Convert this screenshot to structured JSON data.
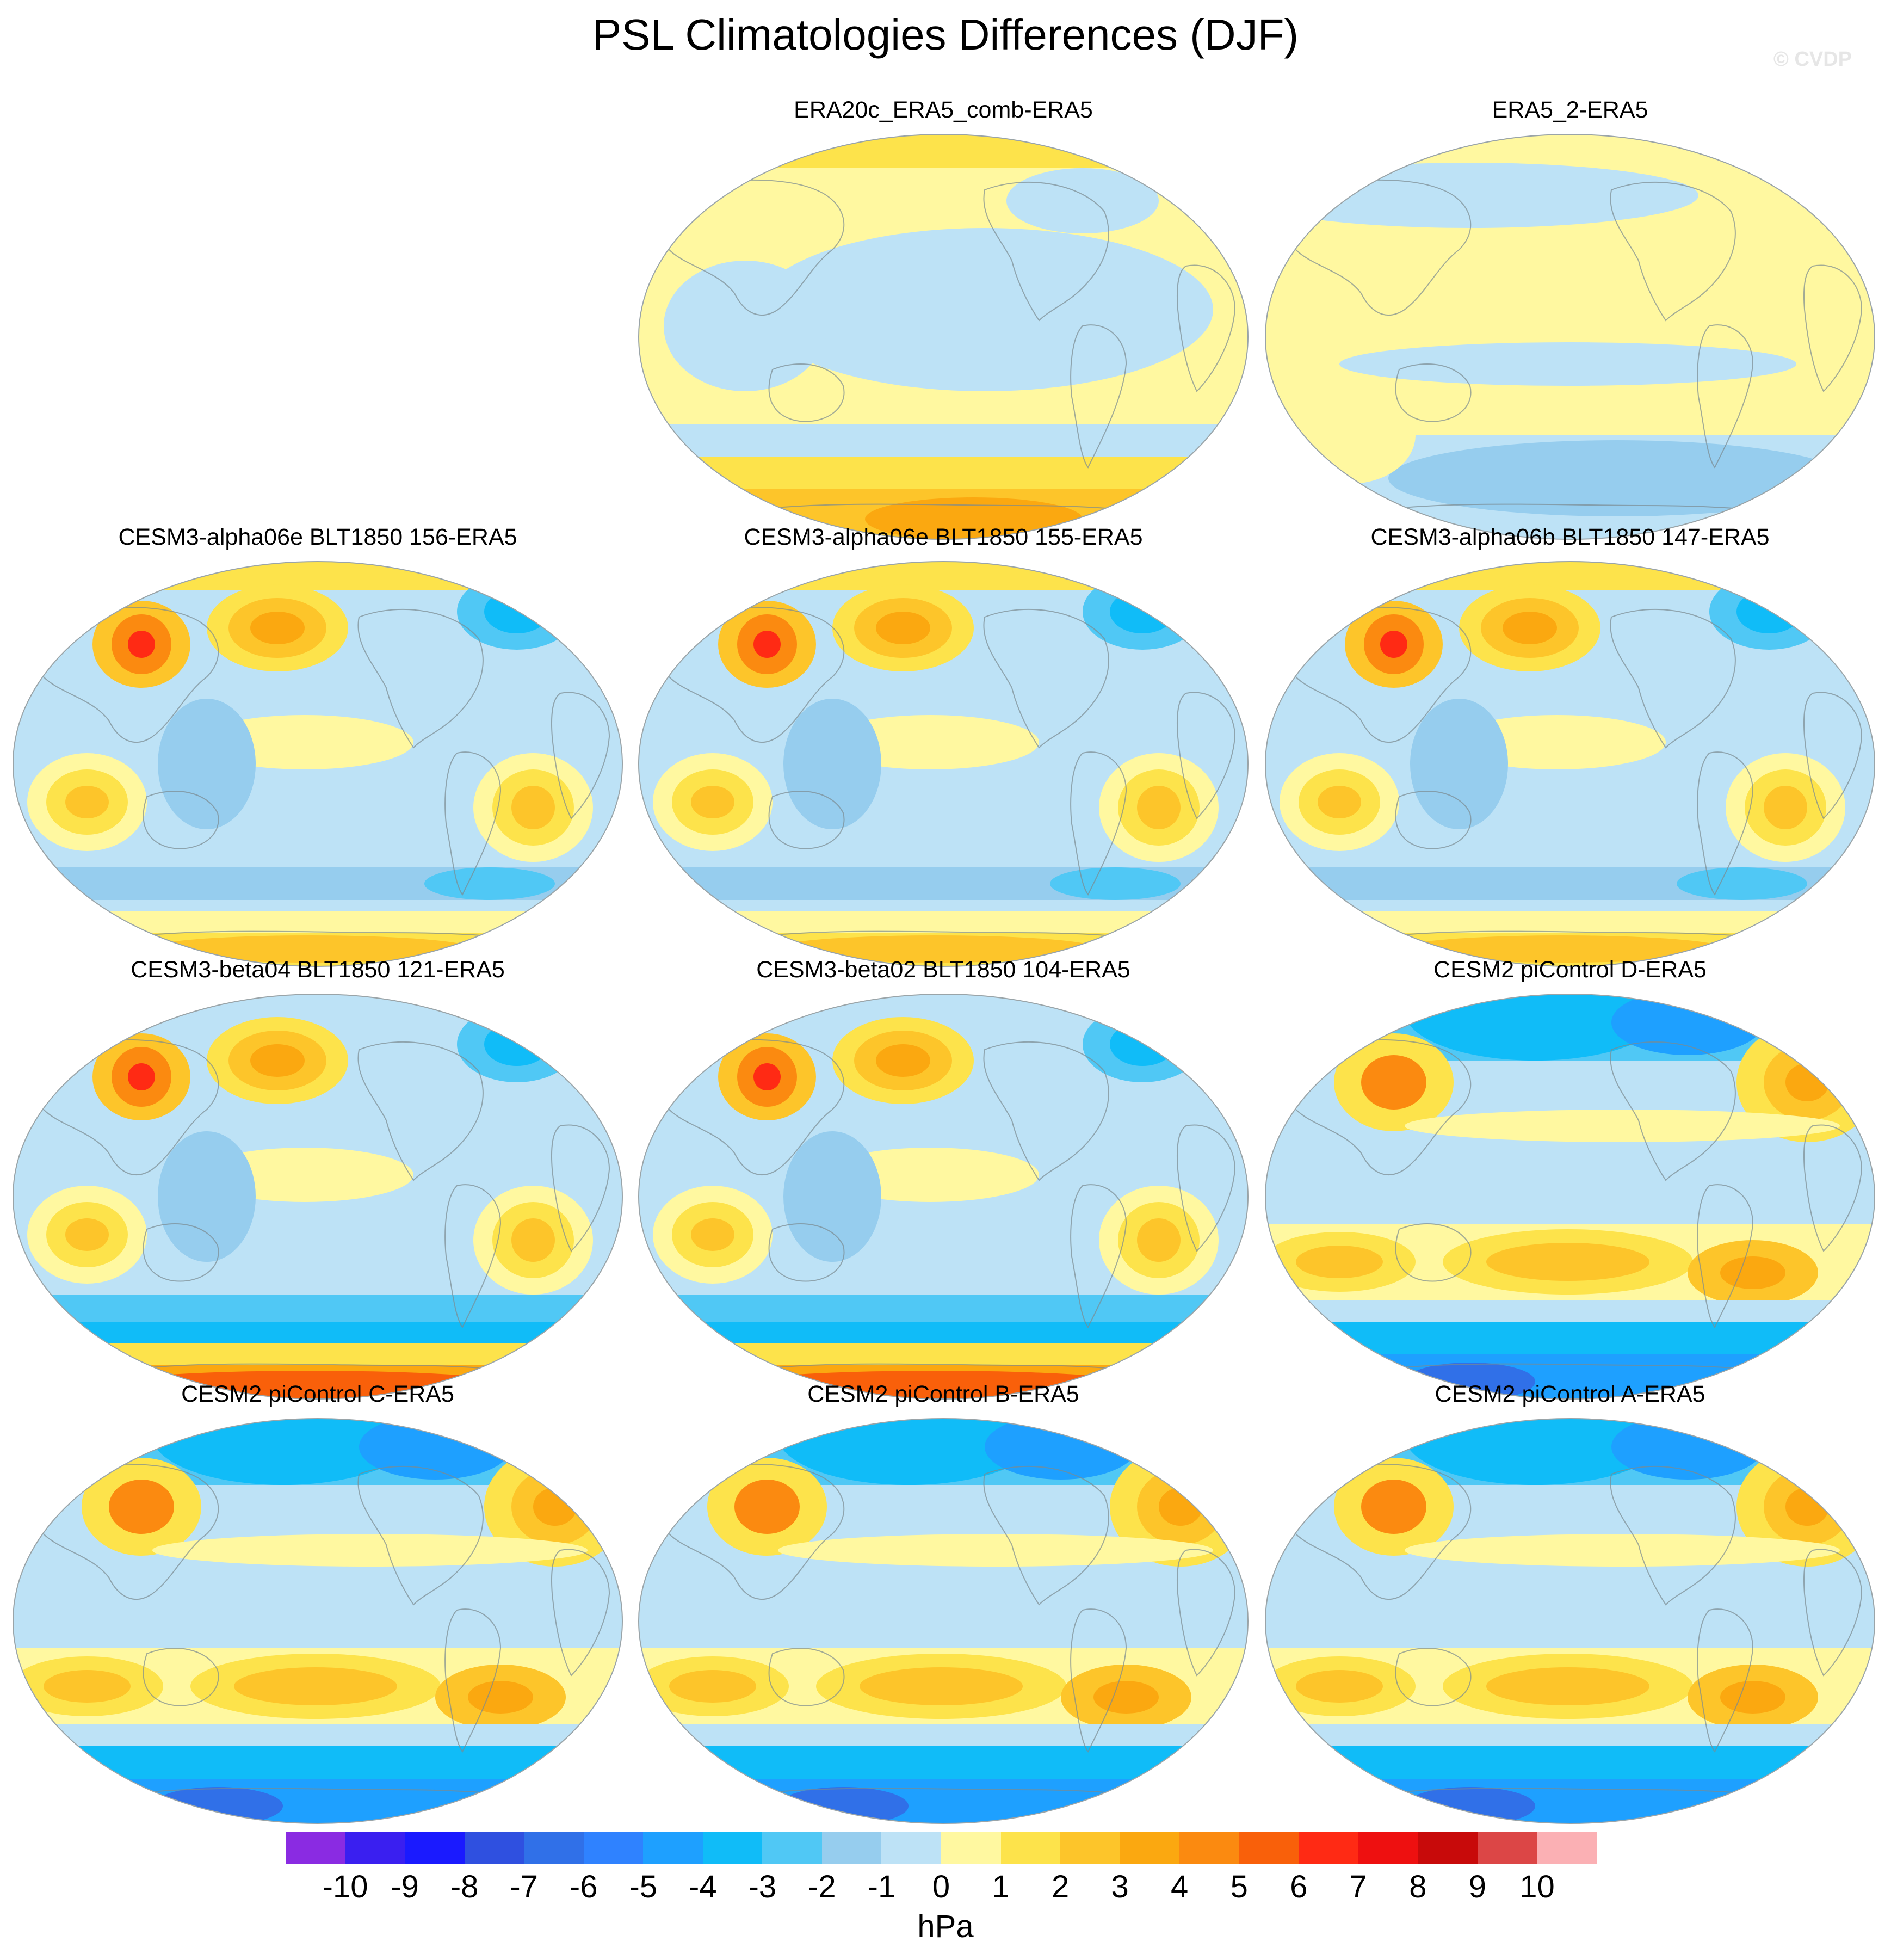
{
  "title": "PSL Climatologies Differences (DJF)",
  "copyright": "© CVDP",
  "panels": [
    {
      "title": "ERA20c_ERA5_comb-ERA5",
      "row": 0,
      "col": 1,
      "style": "obs"
    },
    {
      "title": "ERA5_2-ERA5",
      "row": 0,
      "col": 2,
      "style": "obs2"
    },
    {
      "title": "CESM3-alpha06e BLT1850 156-ERA5",
      "row": 1,
      "col": 0,
      "style": "cesm3"
    },
    {
      "title": "CESM3-alpha06e BLT1850 155-ERA5",
      "row": 1,
      "col": 1,
      "style": "cesm3"
    },
    {
      "title": "CESM3-alpha06b BLT1850 147-ERA5",
      "row": 1,
      "col": 2,
      "style": "cesm3"
    },
    {
      "title": "CESM3-beta04 BLT1850 121-ERA5",
      "row": 2,
      "col": 0,
      "style": "cesm3b"
    },
    {
      "title": "CESM3-beta02 BLT1850 104-ERA5",
      "row": 2,
      "col": 1,
      "style": "cesm3b"
    },
    {
      "title": "CESM2 piControl D-ERA5",
      "row": 2,
      "col": 2,
      "style": "cesm2"
    },
    {
      "title": "CESM2 piControl C-ERA5",
      "row": 3,
      "col": 0,
      "style": "cesm2"
    },
    {
      "title": "CESM2 piControl B-ERA5",
      "row": 3,
      "col": 1,
      "style": "cesm2"
    },
    {
      "title": "CESM2 piControl A-ERA5",
      "row": 3,
      "col": 2,
      "style": "cesm2"
    }
  ],
  "colorbar": {
    "colors": [
      "#8a2be2",
      "#3a1ff0",
      "#1a1aff",
      "#2f50e0",
      "#3070e8",
      "#2f82ff",
      "#1ea0ff",
      "#10bcf8",
      "#50c8f5",
      "#96cdee",
      "#bde2f6",
      "#fff8a0",
      "#fde34b",
      "#fdc52a",
      "#fba810",
      "#fb8a10",
      "#f9600a",
      "#ff2a14",
      "#ee1010",
      "#c80a0a",
      "#dc4646",
      "#fbb0b4"
    ],
    "labels": [
      "-10",
      "-9",
      "-8",
      "-7",
      "-6",
      "-5",
      "-4",
      "-3",
      "-2",
      "-1",
      "0",
      "1",
      "2",
      "3",
      "4",
      "5",
      "6",
      "7",
      "8",
      "9",
      "10"
    ],
    "units": "hPa"
  }
}
